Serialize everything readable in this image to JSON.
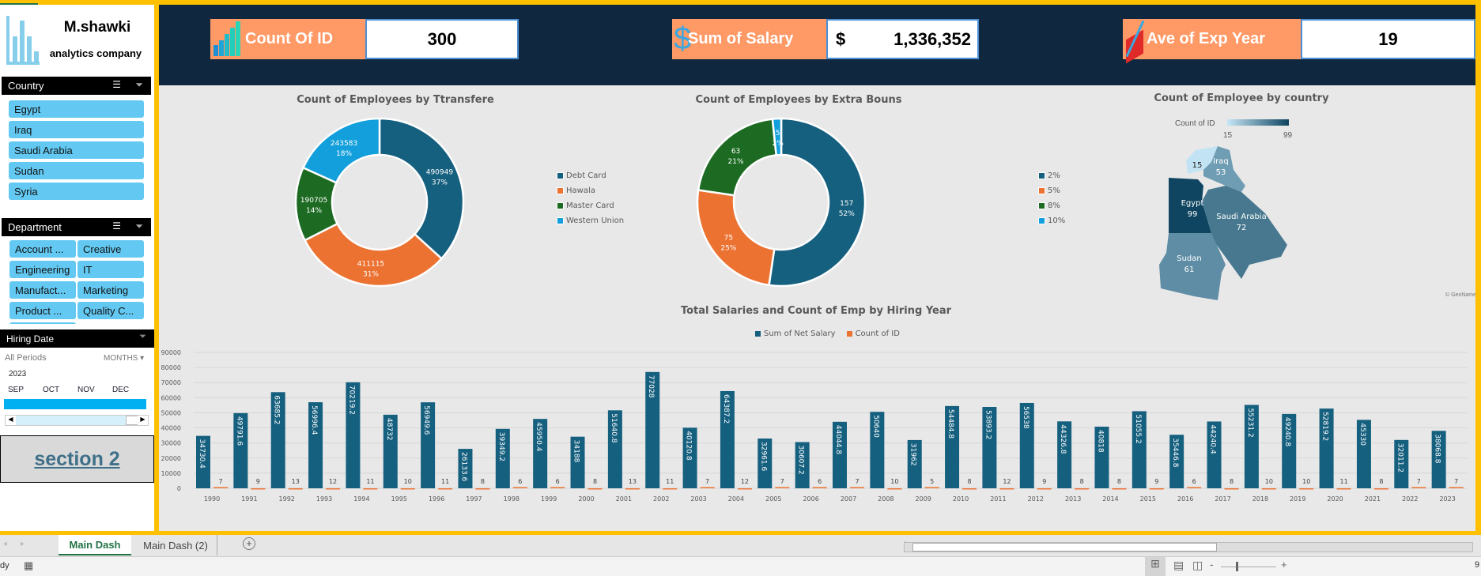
{
  "brand": {
    "name": "M.shawki",
    "tagline": "analytics company"
  },
  "kpis": [
    {
      "label": "Count Of ID",
      "value": "300",
      "icon": "bar-growth-icon"
    },
    {
      "label": "Sum of Salary",
      "currency": "$",
      "value": "1,336,352",
      "icon": "dollar-icon"
    },
    {
      "label": "Ave of Exp Year",
      "value": "19",
      "icon": "rising-chart-icon"
    }
  ],
  "slicers": {
    "country": {
      "title": "Country",
      "items": [
        "Egypt",
        "Iraq",
        "Saudi Arabia",
        "Sudan",
        "Syria"
      ]
    },
    "department": {
      "title": "Department",
      "items": [
        "Account ...",
        "Creative",
        "Engineering",
        "IT",
        "Manufact...",
        "Marketing",
        "Product ...",
        "Quality C...",
        "Sales"
      ]
    },
    "hiring": {
      "title": "Hiring Date",
      "period": "All Periods",
      "level": "MONTHS",
      "year": "2023",
      "months": [
        "SEP",
        "OCT",
        "NOV",
        "DEC"
      ]
    }
  },
  "section_link": "section 2",
  "colors": {
    "accent": "#ffc000",
    "header": "#10283f",
    "kpi": "#ff9966",
    "blue": "#16607f",
    "orange": "#ec7232",
    "green": "#1d6b23",
    "light": "#139fdb"
  },
  "chart_data": [
    {
      "type": "pie",
      "title": "Count of Employees by Ttransfere",
      "categories": [
        "Debt Card",
        "Hawala",
        "Master Card",
        "Western Union"
      ],
      "values": [
        490949,
        411115,
        190705,
        243583
      ],
      "percent_labels": [
        "37%",
        "31%",
        "14%",
        "18%"
      ],
      "legend": "right"
    },
    {
      "type": "pie",
      "title": "Count of Employees by Extra Bouns",
      "categories": [
        "2%",
        "5%",
        "8%",
        "10%"
      ],
      "values": [
        157,
        75,
        63,
        5
      ],
      "percent_labels": [
        "52%",
        "25%",
        "21%",
        "2%"
      ],
      "legend": "right"
    },
    {
      "type": "map",
      "title": "Count of Employee by country",
      "legend_title": "Count of ID",
      "range": [
        15,
        99
      ],
      "regions": [
        {
          "name": "Egypt",
          "value": 99
        },
        {
          "name": "Saudi Arabia",
          "value": 72
        },
        {
          "name": "Sudan",
          "value": 61
        },
        {
          "name": "Iraq",
          "value": 53
        },
        {
          "name": "Syria",
          "value": 15
        }
      ],
      "credit": "© GeoNames"
    },
    {
      "type": "bar",
      "title": "Total Salaries and Count of Emp by Hiring Year",
      "legend": "top",
      "ylim": [
        0,
        90000
      ],
      "yticks": [
        0,
        10000,
        20000,
        30000,
        40000,
        50000,
        60000,
        70000,
        80000,
        90000
      ],
      "grid": true,
      "categories": [
        "1990",
        "1991",
        "1992",
        "1993",
        "1994",
        "1995",
        "1996",
        "1997",
        "1998",
        "1999",
        "2000",
        "2001",
        "2002",
        "2003",
        "2004",
        "2005",
        "2006",
        "2007",
        "2008",
        "2009",
        "2010",
        "2011",
        "2012",
        "2013",
        "2014",
        "2015",
        "2016",
        "2017",
        "2018",
        "2019",
        "2020",
        "2021",
        "2022",
        "2023"
      ],
      "series": [
        {
          "name": "Sum of Net Salary",
          "values": [
            34730.4,
            49791.6,
            63685.2,
            56996.4,
            70219.2,
            48732,
            56949.6,
            26133.6,
            39349.2,
            45950.4,
            34188,
            51640.8,
            77028,
            40120.8,
            64387.2,
            32961.6,
            30607.2,
            44044.8,
            50640,
            31962,
            54484.8,
            53893.2,
            56538,
            44326.8,
            40818,
            51055.2,
            35446.8,
            44240.4,
            55231.2,
            49240.8,
            52819.2,
            45330,
            32011.2,
            38068.8
          ]
        },
        {
          "name": "Count of ID",
          "values": [
            7,
            9,
            13,
            12,
            11,
            10,
            11,
            8,
            6,
            6,
            8,
            13,
            11,
            7,
            12,
            7,
            6,
            7,
            10,
            5,
            8,
            12,
            9,
            8,
            8,
            9,
            6,
            8,
            10,
            10,
            11,
            8,
            7,
            7
          ]
        }
      ]
    }
  ],
  "sheet_tabs": [
    {
      "label": "Main Dash",
      "active": true
    },
    {
      "label": "Main Dash (2)",
      "active": false
    }
  ],
  "status": {
    "text": "dy",
    "zoom": "9"
  }
}
